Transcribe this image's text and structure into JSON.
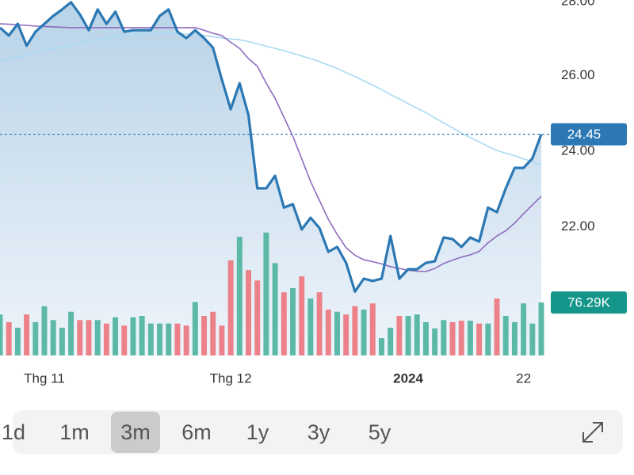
{
  "chart_data": {
    "type": "line",
    "categories": [
      null,
      null,
      null,
      null,
      null,
      "Thg 11",
      null,
      null,
      null,
      null,
      null,
      null,
      null,
      null,
      null,
      null,
      null,
      null,
      null,
      null,
      null,
      null,
      null,
      null,
      null,
      null,
      "Thg 12",
      null,
      null,
      null,
      null,
      null,
      null,
      null,
      null,
      null,
      null,
      null,
      null,
      null,
      null,
      null,
      null,
      null,
      null,
      null,
      "2024",
      null,
      null,
      null,
      null,
      null,
      null,
      null,
      null,
      null,
      null,
      null,
      null,
      "22",
      null,
      null
    ],
    "series": [
      {
        "type": "area",
        "color": "#2b78b4",
        "values": [
          27.27,
          27.06,
          27.37,
          26.79,
          27.16,
          27.37,
          27.58,
          27.75,
          27.94,
          27.62,
          27.2,
          27.75,
          27.37,
          27.69,
          27.16,
          27.2,
          27.2,
          27.2,
          27.58,
          27.75,
          27.16,
          26.99,
          27.2,
          26.99,
          26.74,
          25.9,
          25.11,
          25.8,
          24.96,
          23.02,
          23.02,
          23.35,
          22.51,
          22.6,
          21.93,
          22.24,
          21.97,
          21.34,
          21.47,
          21.05,
          20.29,
          20.63,
          20.57,
          20.63,
          21.76,
          20.63,
          20.88,
          20.88,
          21.05,
          21.09,
          21.72,
          21.68,
          21.47,
          21.72,
          21.61,
          22.51,
          22.39,
          23.02,
          23.56,
          23.56,
          23.81,
          24.45
        ]
      },
      {
        "type": "line",
        "color": "#8e6bbf",
        "values": [
          27.37,
          27.36,
          27.34,
          27.33,
          27.31,
          27.3,
          27.29,
          27.28,
          27.27,
          27.27,
          27.27,
          27.27,
          27.27,
          27.27,
          27.27,
          27.27,
          27.27,
          27.27,
          27.27,
          27.27,
          27.27,
          27.27,
          27.27,
          27.2,
          27.12,
          27.06,
          26.88,
          26.72,
          26.45,
          26.25,
          25.8,
          25.4,
          24.9,
          24.4,
          23.8,
          23.2,
          22.7,
          22.2,
          21.8,
          21.45,
          21.25,
          21.13,
          21.08,
          21.02,
          20.95,
          20.9,
          20.85,
          20.83,
          20.82,
          20.9,
          21.03,
          21.12,
          21.2,
          21.26,
          21.35,
          21.58,
          21.76,
          21.9,
          22.1,
          22.35,
          22.58,
          22.81
        ]
      },
      {
        "type": "line",
        "color": "#a9daf2",
        "values": [
          26.37,
          26.43,
          26.49,
          26.55,
          26.61,
          26.66,
          26.71,
          26.76,
          26.82,
          26.87,
          26.92,
          26.96,
          26.99,
          27.03,
          27.06,
          27.08,
          27.1,
          27.12,
          27.12,
          27.12,
          27.12,
          27.1,
          27.08,
          27.06,
          27.03,
          27.0,
          26.97,
          26.95,
          26.9,
          26.84,
          26.78,
          26.72,
          26.66,
          26.59,
          26.52,
          26.45,
          26.37,
          26.28,
          26.19,
          26.08,
          25.98,
          25.86,
          25.75,
          25.63,
          25.5,
          25.38,
          25.26,
          25.14,
          25.02,
          24.88,
          24.75,
          24.62,
          24.48,
          24.36,
          24.25,
          24.13,
          24.02,
          23.95,
          23.88,
          23.8,
          23.72,
          23.64
        ]
      },
      {
        "type": "bar",
        "axis": "y2",
        "up_color": "#5cb8a7",
        "down_color": "#ec8189",
        "label_color": "#15968a",
        "values": [
          59,
          48,
          40,
          59,
          48,
          71,
          51,
          40,
          63,
          51,
          51,
          51,
          46,
          55,
          43,
          55,
          57,
          46,
          46,
          46,
          46,
          43,
          77,
          57,
          63,
          43,
          137,
          171,
          123,
          108,
          177,
          133,
          91,
          97,
          114,
          82,
          91,
          66,
          63,
          59,
          71,
          66,
          75,
          25,
          40,
          57,
          57,
          59,
          48,
          39,
          51,
          48,
          50,
          50,
          46,
          46,
          82,
          57,
          48,
          75,
          46,
          76.29
        ],
        "value_labels": [
          null,
          null,
          null,
          null,
          null,
          null,
          null,
          null,
          null,
          null,
          null,
          null,
          null,
          null,
          null,
          null,
          null,
          null,
          null,
          null,
          null,
          null,
          null,
          null,
          null,
          null,
          null,
          null,
          null,
          null,
          null,
          null,
          null,
          null,
          null,
          null,
          null,
          null,
          null,
          null,
          null,
          null,
          null,
          null,
          null,
          null,
          null,
          null,
          null,
          null,
          null,
          null,
          null,
          null,
          null,
          null,
          null,
          null,
          null,
          null,
          null,
          "76.29K"
        ]
      }
    ],
    "ylim": [
      18.6,
      28.0
    ],
    "yticks": [
      {
        "value": 22,
        "label": "22.00"
      },
      {
        "value": 24,
        "label": "24.00"
      },
      {
        "value": 26,
        "label": "26.00"
      },
      {
        "value": 28,
        "label": "28.00"
      }
    ],
    "y2lim": [
      0,
      512
    ]
  },
  "range_selector": {
    "options": [
      "1d",
      "1m",
      "3m",
      "6m",
      "1y",
      "3y",
      "5y"
    ],
    "selected": 2
  }
}
